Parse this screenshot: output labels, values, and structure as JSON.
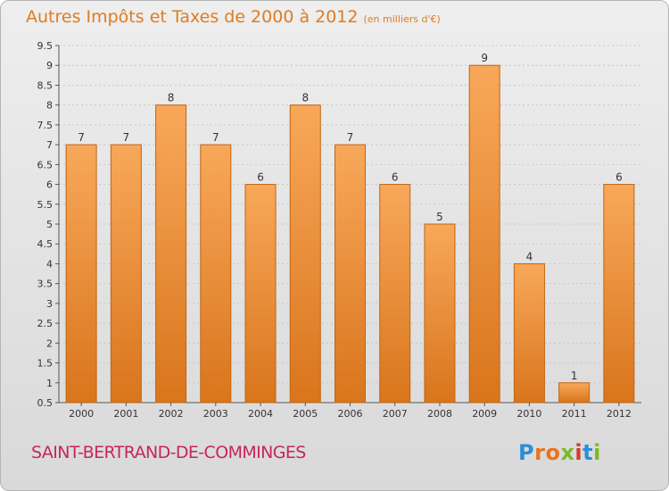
{
  "header": {
    "title": "Autres Impôts et Taxes de 2000 à 2012",
    "unit": "(en milliers d'€)"
  },
  "footer": {
    "commune": "SAINT-BERTRAND-DE-COMMINGES",
    "logo_letters": [
      "P",
      "r",
      "o",
      "x",
      "i",
      "t",
      "i"
    ],
    "logo_colors": [
      "#2a8fd6",
      "#e9731e",
      "#e9731e",
      "#7bb928",
      "#d63a2b",
      "#2a8fd6",
      "#7bb928"
    ]
  },
  "colors": {
    "bar_top": "#f8a85a",
    "bar_bottom": "#d9751c",
    "bar_edge": "#c2640f",
    "axis": "#555555",
    "grid": "#c8c8c8",
    "label": "#333333"
  },
  "chart_data": {
    "type": "bar",
    "categories": [
      "2000",
      "2001",
      "2002",
      "2003",
      "2004",
      "2005",
      "2006",
      "2007",
      "2008",
      "2009",
      "2010",
      "2011",
      "2012"
    ],
    "values": [
      7,
      7,
      8,
      7,
      6,
      8,
      7,
      6,
      5,
      9,
      4,
      1,
      6
    ],
    "y_ticks": [
      "0.5",
      "1",
      "1.5",
      "2",
      "2.5",
      "3",
      "3.5",
      "4",
      "4.5",
      "5",
      "5.5",
      "6",
      "6.5",
      "7",
      "7.5",
      "8",
      "8.5",
      "9",
      "9.5"
    ],
    "y_tick_values": [
      0.5,
      1,
      1.5,
      2,
      2.5,
      3,
      3.5,
      4,
      4.5,
      5,
      5.5,
      6,
      6.5,
      7,
      7.5,
      8,
      8.5,
      9,
      9.5
    ],
    "ylim": [
      0.5,
      9.5
    ],
    "grid": true
  }
}
